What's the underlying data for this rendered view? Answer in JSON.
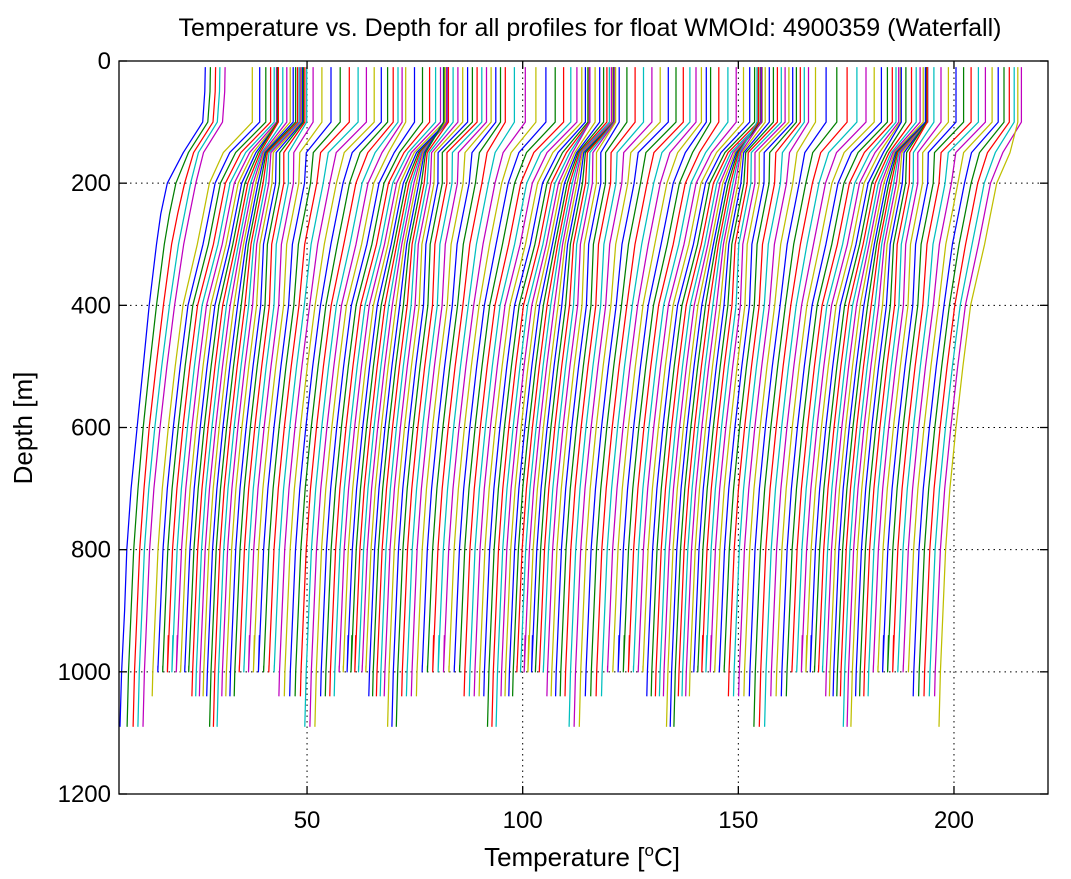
{
  "chart_data": {
    "type": "line",
    "title": "Temperature vs. Depth for all profiles for float WMOId: 4900359 (Waterfall)",
    "xlabel_prefix": "Temperature [",
    "xlabel_sup": "o",
    "xlabel_suffix": "C]",
    "ylabel": "Depth [m]",
    "xlim": [
      6.4,
      221.8
    ],
    "ylim": [
      0,
      1200
    ],
    "y_reversed": true,
    "grid": true,
    "grid_style": "dotted",
    "x_ticks": [
      50,
      100,
      150,
      200
    ],
    "y_ticks": [
      0,
      200,
      400,
      600,
      800,
      1000,
      1200
    ],
    "depth": [
      10,
      50,
      100,
      150,
      200,
      250,
      300,
      400,
      500,
      600,
      700,
      800,
      900,
      1000
    ],
    "series_colors": [
      "#0000ff",
      "#008000",
      "#ff0000",
      "#00bfbf",
      "#bf00bf",
      "#bfbf00"
    ],
    "profile_count": 180,
    "series": [
      {
        "temperature": [
          26.4,
          26.3,
          25.8,
          21.3,
          17.6,
          16.1,
          15.1,
          13.4,
          12.0,
          10.6,
          9.2,
          8.2,
          7.7,
          7.0
        ],
        "max_depth": 1090
      },
      {
        "temperature": [
          27.6,
          27.5,
          27.0,
          22.5,
          19.6,
          18.1,
          16.9,
          15.1,
          13.5,
          12.0,
          10.8,
          9.8,
          9.2,
          8.6
        ],
        "max_depth": 1090
      },
      {
        "temperature": [
          28.8,
          28.7,
          28.2,
          23.7,
          21.6,
          20.0,
          18.6,
          16.7,
          15.0,
          13.4,
          12.2,
          11.2,
          10.6,
          10.0
        ],
        "max_depth": 1090
      },
      {
        "temperature": [
          29.8,
          29.7,
          29.2,
          24.8,
          23.0,
          21.6,
          20.2,
          18.1,
          16.3,
          14.7,
          13.3,
          12.3,
          11.7,
          11.1
        ],
        "max_depth": 1090
      },
      {
        "temperature": [
          31.0,
          30.9,
          30.4,
          26.0,
          24.2,
          22.8,
          21.4,
          19.3,
          17.5,
          15.9,
          14.5,
          13.5,
          12.9,
          12.3
        ],
        "max_depth": 1090
      }
    ]
  }
}
